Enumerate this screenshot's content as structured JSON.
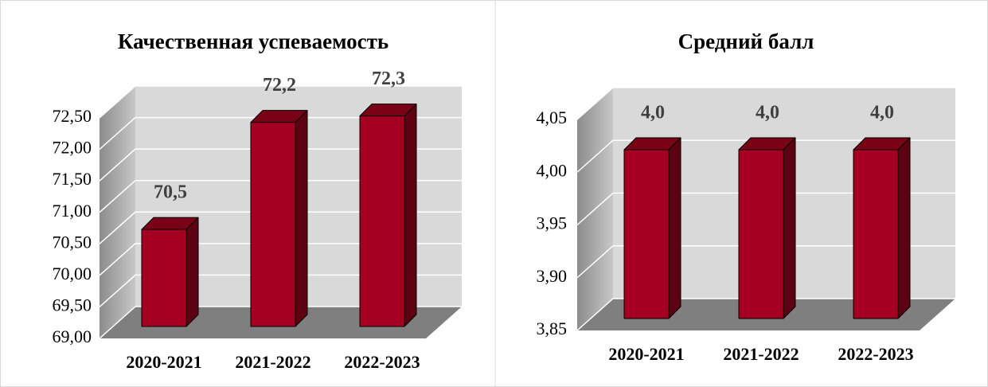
{
  "chart_data": [
    {
      "type": "bar3d",
      "title": "Качественная успеваемость",
      "categories": [
        "2020-2021",
        "2021-2022",
        "2022-2023"
      ],
      "values": [
        70.54,
        72.24,
        72.34
      ],
      "value_labels": [
        "70,5",
        "72,2",
        "72,3"
      ],
      "color": "#a50021",
      "ylim": [
        69,
        72.5
      ],
      "yticks": [
        {
          "value": 69,
          "label": "69,00"
        },
        {
          "value": 69.5,
          "label": "69,50"
        },
        {
          "value": 70,
          "label": "70,00"
        },
        {
          "value": 70.5,
          "label": "70,50"
        },
        {
          "value": 71,
          "label": "71,00"
        },
        {
          "value": 71.5,
          "label": "71,50"
        },
        {
          "value": 72,
          "label": "72,00"
        },
        {
          "value": 72.5,
          "label": "72,50"
        }
      ],
      "grid": true
    },
    {
      "type": "bar3d",
      "title": "Средний балл",
      "categories": [
        "2020-2021",
        "2021-2022",
        "2022-2023"
      ],
      "values": [
        4.01,
        4.01,
        4.01
      ],
      "value_labels": [
        "4,0",
        "4,0",
        "4,0"
      ],
      "color": "#a50021",
      "ylim": [
        3.85,
        4.05
      ],
      "yticks": [
        {
          "value": 3.85,
          "label": "3,85"
        },
        {
          "value": 3.9,
          "label": "3,90"
        },
        {
          "value": 3.95,
          "label": "3,95"
        },
        {
          "value": 4,
          "label": "4,00"
        },
        {
          "value": 4.05,
          "label": "4,05"
        }
      ],
      "grid": true
    }
  ]
}
